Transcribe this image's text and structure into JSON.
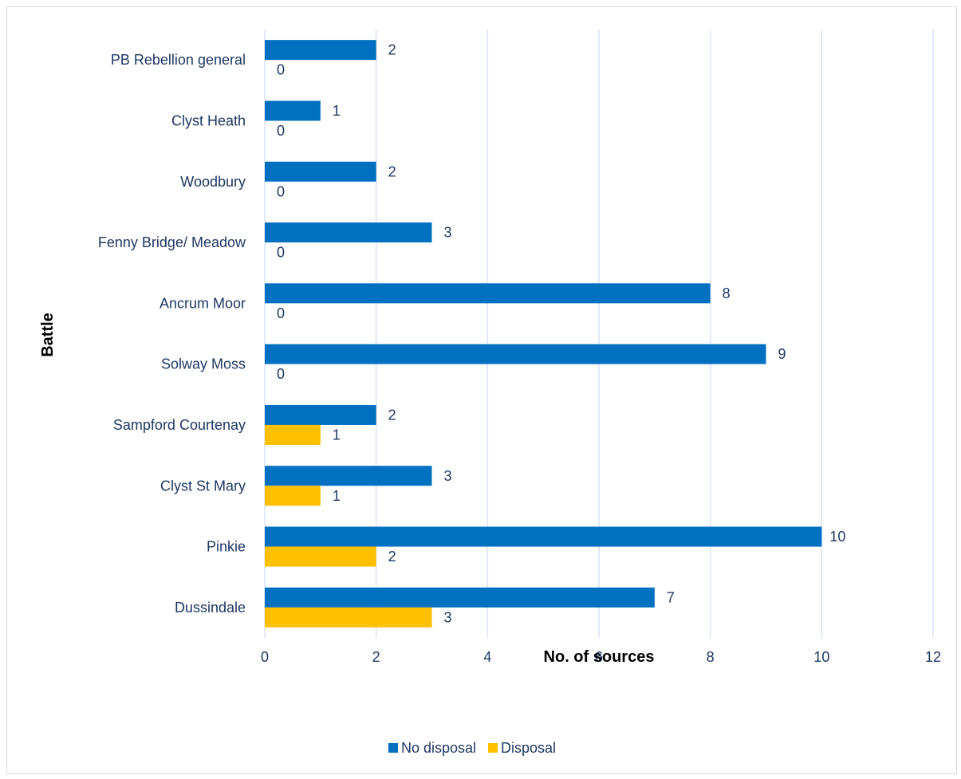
{
  "chart_data": {
    "type": "bar",
    "orientation": "horizontal",
    "title": "",
    "xlabel": "No. of sources",
    "ylabel": "Battle",
    "xlim": [
      0,
      12
    ],
    "x_ticks": [
      0,
      2,
      4,
      6,
      8,
      10,
      12
    ],
    "grid": "vertical",
    "legend_position": "bottom",
    "categories": [
      "PB Rebellion general",
      "Clyst Heath",
      "Woodbury",
      "Fenny Bridge/ Meadow",
      "Ancrum Moor",
      "Solway Moss",
      "Sampford Courtenay",
      "Clyst St Mary",
      "Pinkie",
      "Dussindale"
    ],
    "series": [
      {
        "name": "No disposal",
        "color": "#0070c0",
        "values": [
          2,
          1,
          2,
          3,
          8,
          9,
          2,
          3,
          10,
          7
        ]
      },
      {
        "name": "Disposal",
        "color": "#ffc000",
        "values": [
          0,
          0,
          0,
          0,
          0,
          0,
          1,
          1,
          2,
          3
        ]
      }
    ]
  }
}
